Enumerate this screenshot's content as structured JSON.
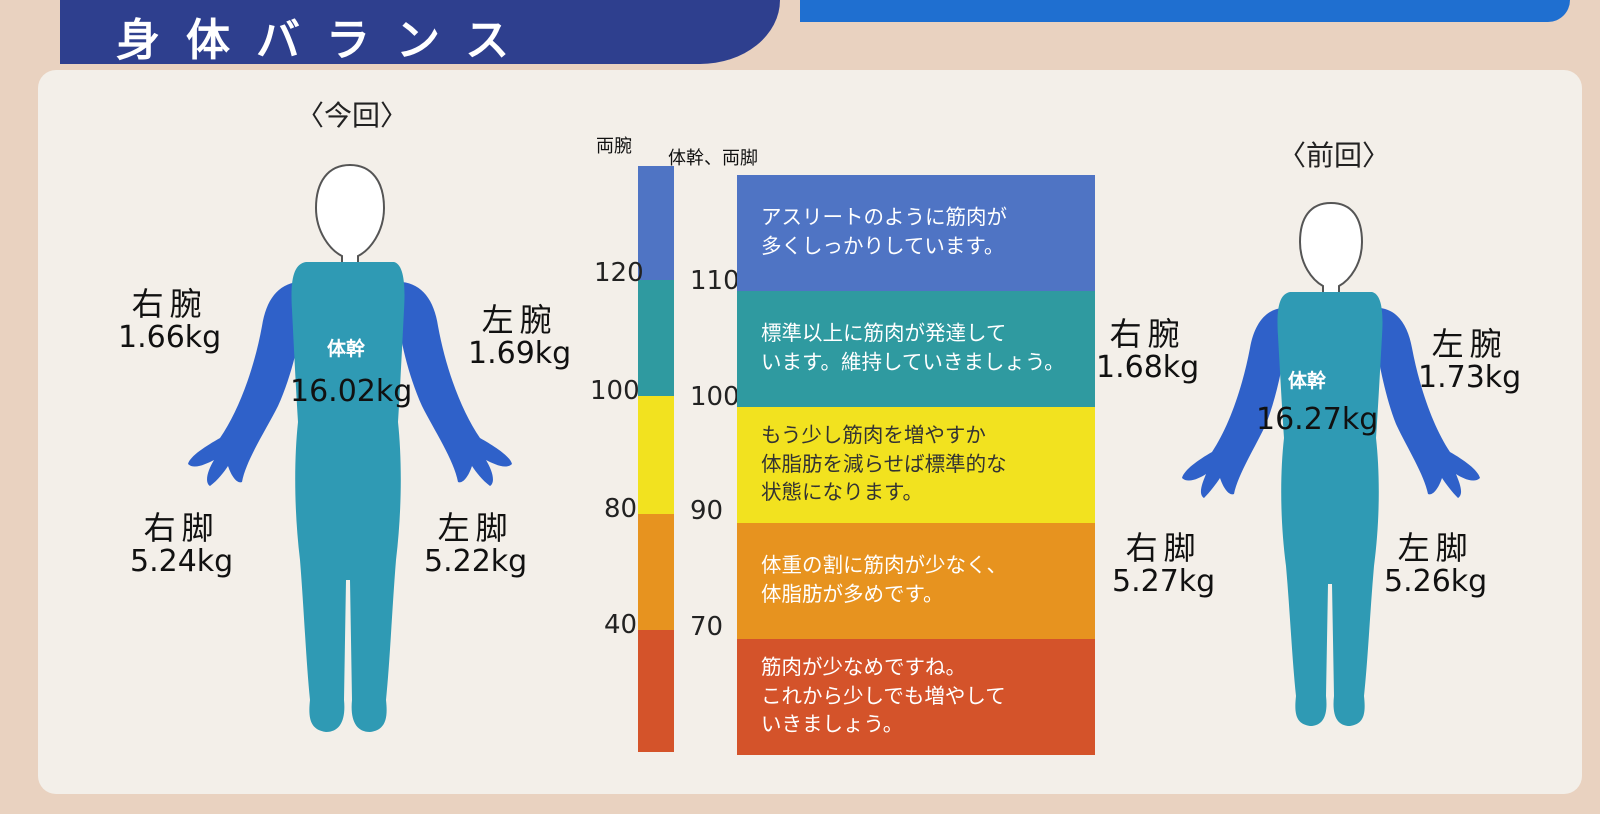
{
  "header": {
    "title": "身体バランス"
  },
  "current": {
    "label": "〈今回〉",
    "right_arm": {
      "name": "右腕",
      "value": "1.66kg"
    },
    "left_arm": {
      "name": "左腕",
      "value": "1.69kg"
    },
    "trunk": {
      "name": "体幹",
      "value": "16.02kg"
    },
    "right_leg": {
      "name": "右脚",
      "value": "5.24kg"
    },
    "left_leg": {
      "name": "左脚",
      "value": "5.22kg"
    }
  },
  "previous": {
    "label": "〈前回〉",
    "right_arm": {
      "name": "右腕",
      "value": "1.68kg"
    },
    "left_arm": {
      "name": "左腕",
      "value": "1.73kg"
    },
    "trunk": {
      "name": "体幹",
      "value": "16.27kg"
    },
    "right_leg": {
      "name": "右脚",
      "value": "5.27kg"
    },
    "left_leg": {
      "name": "左脚",
      "value": "5.26kg"
    }
  },
  "scale": {
    "arms_header": "両腕",
    "trunk_legs_header": "体幹、両脚",
    "arms_ticks": [
      "120",
      "100",
      "80",
      "40"
    ],
    "trunk_legs_ticks": [
      "110",
      "100",
      "90",
      "70"
    ]
  },
  "guide": [
    {
      "text": "アスリートのように筋肉が\n多くしっかりしています。",
      "color": "#4f74c4"
    },
    {
      "text": "標準以上に筋肉が発達して\nいます。維持していきましょう。",
      "color": "#2f9aa0"
    },
    {
      "text": "もう少し筋肉を増やすか\n体脂肪を減らせば標準的な\n状態になります。",
      "color": "#f2e21f",
      "text_color": "#333333"
    },
    {
      "text": "体重の割に筋肉が少なく、\n体脂肪が多めです。",
      "color": "#e7931f"
    },
    {
      "text": "筋肉が少なめですね。\nこれから少しでも増やして\nいきましょう。",
      "color": "#d4532a"
    }
  ],
  "colors": {
    "body_trunk": "#2f9ab4",
    "body_arm": "#2f61c9",
    "band": "#2e3f8e"
  }
}
